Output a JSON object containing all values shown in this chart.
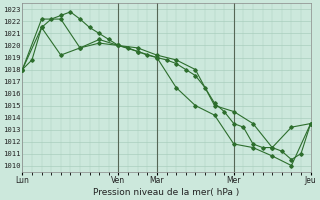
{
  "xlabel": "Pression niveau de la mer( hPa )",
  "background_color": "#cce8dc",
  "grid_color": "#aacfbe",
  "line_color": "#2d6e2d",
  "vline_color": "#556655",
  "ylim": [
    1009.5,
    1023.5
  ],
  "yticks": [
    1010,
    1011,
    1012,
    1013,
    1014,
    1015,
    1016,
    1017,
    1018,
    1019,
    1020,
    1021,
    1022,
    1023
  ],
  "xlim": [
    0,
    30
  ],
  "vline_positions": [
    10,
    14,
    22
  ],
  "xtick_positions": [
    0,
    10,
    14,
    22,
    30
  ],
  "xtick_labels": [
    "Lun",
    "Ven",
    "Mar",
    "Mer",
    "Jeu"
  ],
  "series1_x": [
    0,
    1,
    2,
    3,
    4,
    5,
    6,
    7,
    8,
    9,
    10,
    11,
    12,
    13,
    14,
    15,
    16,
    17,
    18,
    19,
    20,
    21,
    22,
    23,
    24,
    25,
    26,
    27,
    28,
    29,
    30
  ],
  "series1_y": [
    1018.0,
    1018.8,
    1021.5,
    1022.2,
    1022.5,
    1022.8,
    1022.2,
    1021.5,
    1021.0,
    1020.5,
    1020.0,
    1019.8,
    1019.5,
    1019.2,
    1019.0,
    1018.8,
    1018.5,
    1018.0,
    1017.5,
    1016.5,
    1015.2,
    1014.5,
    1013.5,
    1013.2,
    1011.8,
    1011.5,
    1011.5,
    1011.2,
    1010.5,
    1011.0,
    1013.5
  ],
  "series2_x": [
    0,
    2,
    4,
    6,
    8,
    10,
    12,
    14,
    16,
    18,
    20,
    22,
    24,
    26,
    28,
    30
  ],
  "series2_y": [
    1018.0,
    1022.2,
    1022.2,
    1019.8,
    1020.5,
    1020.0,
    1019.8,
    1019.2,
    1018.8,
    1018.0,
    1015.0,
    1014.5,
    1013.5,
    1011.5,
    1013.2,
    1013.5
  ],
  "series3_x": [
    0,
    2,
    4,
    6,
    8,
    10,
    12,
    14,
    16,
    18,
    20,
    22,
    24,
    26,
    28,
    30
  ],
  "series3_y": [
    1018.0,
    1021.5,
    1019.2,
    1019.8,
    1020.2,
    1020.0,
    1019.5,
    1019.0,
    1016.5,
    1015.0,
    1014.2,
    1011.8,
    1011.5,
    1010.8,
    1010.0,
    1013.5
  ]
}
